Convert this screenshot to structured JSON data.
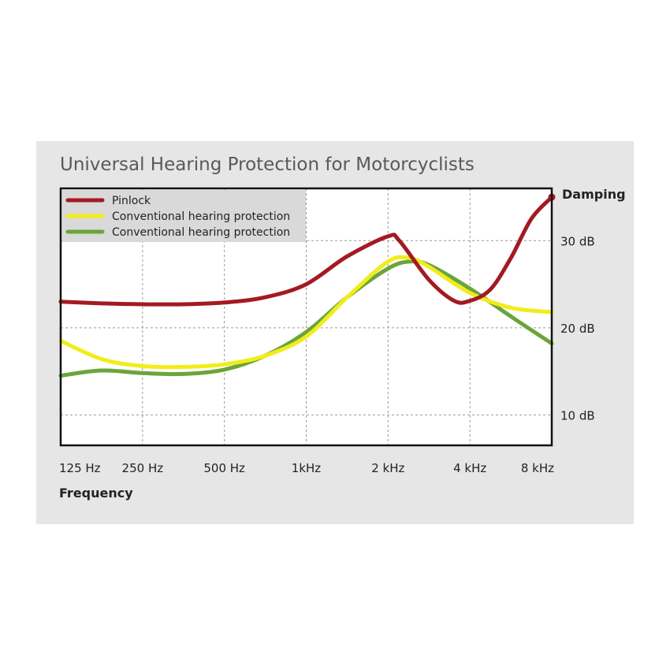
{
  "chart_data": {
    "type": "line",
    "title": "Universal Hearing Protection for Motorcyclists",
    "xlabel": "Frequency",
    "ylabel": "Damping",
    "x_scale": "log2",
    "x_ticks": [
      {
        "value": 125,
        "label": "125 Hz"
      },
      {
        "value": 250,
        "label": "250 Hz"
      },
      {
        "value": 500,
        "label": "500 Hz"
      },
      {
        "value": 1000,
        "label": "1kHz"
      },
      {
        "value": 2000,
        "label": "2  kHz"
      },
      {
        "value": 4000,
        "label": "4  kHz"
      },
      {
        "value": 8000,
        "label": "8  kHz"
      }
    ],
    "y_ticks": [
      {
        "value": 10,
        "label": "10 dB"
      },
      {
        "value": 20,
        "label": "20 dB"
      },
      {
        "value": 30,
        "label": "30 dB"
      }
    ],
    "xlim": [
      125,
      8000
    ],
    "ylim": [
      6.5,
      36
    ],
    "grid": true,
    "legend_position": "top-left",
    "series": [
      {
        "name": "Pinlock",
        "color": "#a31a22",
        "x": [
          125,
          177,
          250,
          354,
          500,
          707,
          1000,
          1414,
          2000,
          2200,
          2828,
          3500,
          4000,
          4757,
          5657,
          6727,
          8000
        ],
        "y": [
          23.0,
          22.8,
          22.7,
          22.7,
          22.9,
          23.5,
          25.0,
          28.2,
          30.5,
          30.0,
          25.5,
          23.1,
          23.1,
          24.4,
          28.0,
          32.5,
          35.0
        ]
      },
      {
        "name": "Conventional hearing protection",
        "color": "#f2ec1a",
        "x": [
          125,
          177,
          250,
          354,
          500,
          707,
          1000,
          1414,
          2000,
          2400,
          2828,
          4000,
          5657,
          8000
        ],
        "y": [
          18.5,
          16.4,
          15.6,
          15.5,
          15.8,
          16.8,
          19.0,
          23.5,
          27.6,
          28.0,
          27.0,
          24.0,
          22.3,
          21.8
        ]
      },
      {
        "name": "Conventional hearing protection",
        "color": "#6aa53c",
        "x": [
          125,
          177,
          250,
          354,
          500,
          707,
          1000,
          1414,
          2000,
          2400,
          2828,
          4000,
          5657,
          8000
        ],
        "y": [
          14.5,
          15.1,
          14.8,
          14.7,
          15.2,
          16.8,
          19.5,
          23.5,
          26.8,
          27.6,
          27.2,
          24.5,
          21.3,
          18.2
        ]
      }
    ]
  }
}
